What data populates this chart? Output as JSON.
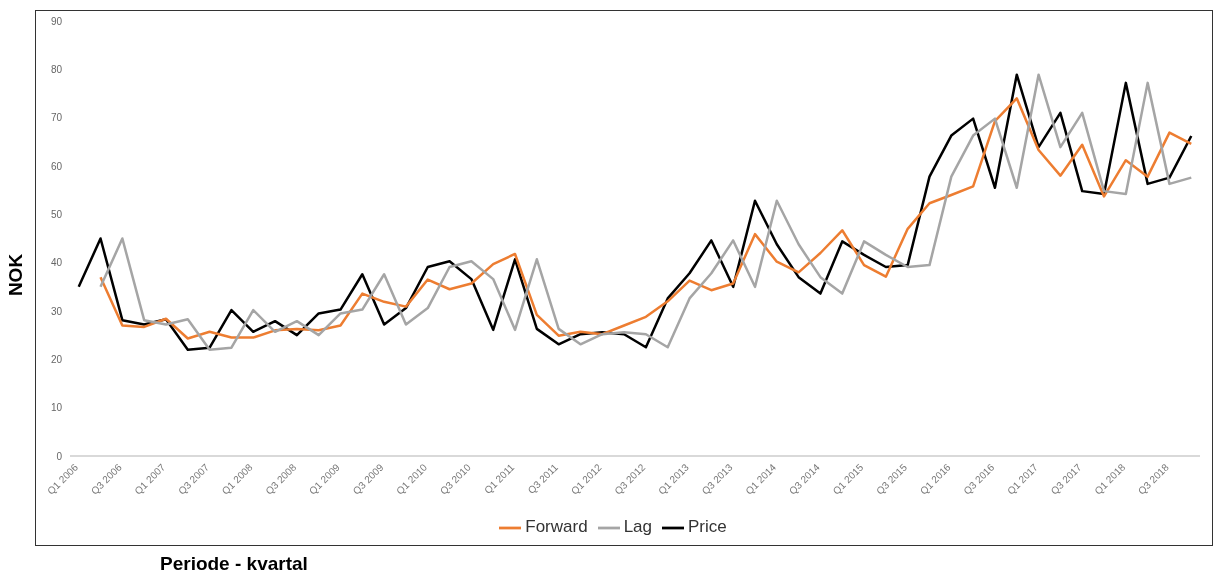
{
  "chart_data": {
    "type": "line",
    "xlabel": "Periode - kvartal",
    "ylabel": "NOK",
    "categories": [
      "Q1 2006",
      null,
      "Q3 2006",
      null,
      "Q1 2007",
      null,
      "Q3 2007",
      null,
      "Q1 2008",
      null,
      "Q3 2008",
      null,
      "Q1 2009",
      null,
      "Q3 2009",
      null,
      "Q1 2010",
      null,
      "Q3 2010",
      null,
      "Q1 2011",
      null,
      "Q3 2011",
      null,
      "Q1 2012",
      null,
      "Q3 2012",
      null,
      "Q1 2013",
      null,
      "Q3 2013",
      null,
      "Q1 2014",
      null,
      "Q3 2014",
      null,
      "Q1 2015",
      null,
      "Q3 2015",
      null,
      "Q1 2016",
      null,
      "Q3 2016",
      null,
      "Q1 2017",
      null,
      "Q3 2017",
      null,
      "Q1 2018",
      null,
      "Q3 2018",
      null
    ],
    "series": [
      {
        "name": "Price",
        "color": "#000000",
        "values": [
          35,
          45,
          28.1,
          27.2,
          28.3,
          22,
          22.4,
          30.2,
          25.7,
          27.9,
          25,
          29.5,
          30.3,
          37.6,
          27.2,
          30.6,
          39.1,
          40.3,
          36.6,
          26.1,
          40.7,
          26.3,
          23.1,
          25.2,
          25.6,
          25.2,
          22.5,
          32.6,
          37.8,
          44.6,
          35,
          52.8,
          43.8,
          37,
          33.6,
          44.4,
          41.6,
          39.1,
          39.5,
          57.8,
          66.3,
          69.8,
          55.5,
          78.9,
          63.9,
          71,
          54.8,
          54.2,
          77.2,
          56.3,
          57.6,
          66.2
        ]
      },
      {
        "name": "Forward",
        "color": "#ed7d31",
        "values": [
          null,
          37,
          27,
          26.7,
          28.4,
          24.3,
          25.7,
          24.5,
          24.5,
          26,
          26.3,
          26,
          27,
          33.6,
          31.9,
          30.9,
          36.5,
          34.5,
          35.7,
          39.7,
          41.8,
          29.2,
          24.9,
          25.7,
          25.2,
          27,
          28.8,
          32,
          36.3,
          34.3,
          35.7,
          45.9,
          40.2,
          38,
          42,
          46.7,
          39.5,
          37.1,
          47,
          52.3,
          54,
          55.8,
          69.3,
          74,
          63.3,
          58,
          64.4,
          53.7,
          61.2,
          57.8,
          66.9,
          64.6
        ]
      },
      {
        "name": "Lag",
        "color": "#a5a5a5",
        "values": [
          null,
          35,
          45,
          28.1,
          27.2,
          28.3,
          22,
          22.4,
          30.2,
          25.7,
          27.9,
          25,
          29.5,
          30.3,
          37.6,
          27.2,
          30.6,
          39.1,
          40.3,
          36.6,
          26.1,
          40.7,
          26.3,
          23.1,
          25.2,
          25.6,
          25.2,
          22.5,
          32.6,
          37.8,
          44.6,
          35,
          52.8,
          43.8,
          37,
          33.6,
          44.4,
          41.6,
          39.1,
          39.5,
          57.8,
          66.3,
          69.8,
          55.5,
          78.9,
          63.9,
          71,
          54.8,
          54.2,
          77.2,
          56.3,
          57.6
        ]
      }
    ],
    "ylim": [
      0,
      90
    ],
    "yticks": [
      0,
      10,
      20,
      30,
      40,
      50,
      60,
      70,
      80,
      90
    ],
    "grid": false,
    "legend": "bottom",
    "marker": "none",
    "line_style": "solid"
  }
}
